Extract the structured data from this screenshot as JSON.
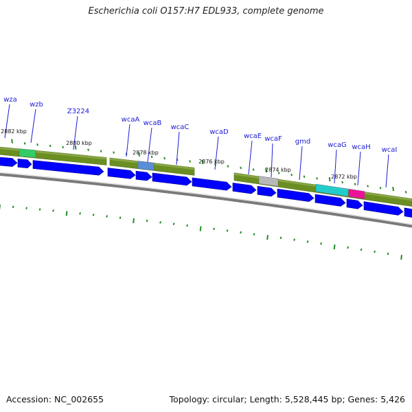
{
  "title": "Escherichia coli O157:H7 EDL933, complete genome",
  "footer": {
    "accession": "Accession: NC_002655",
    "stats": "Topology: circular; Length: 5,528,445 bp; Genes: 5,426"
  },
  "colors": {
    "gene_arrow": "#0000ff",
    "feature_band": "#6b8e23",
    "highlight_green": "#33cc66",
    "highlight_blue": "#5a8fd8",
    "highlight_gray": "#b8b8b8",
    "highlight_cyan": "#22cccc",
    "highlight_magenta": "#ee1199",
    "gene_label": "#1a1ad6",
    "tick": "#228b22",
    "backbone": "#7a7a7a"
  },
  "gene_labels": [
    "wza",
    "wzb",
    "Z3224",
    "wcaA",
    "wcaB",
    "wcaC",
    "wcaD",
    "wcaE",
    "wcaF",
    "gmd",
    "wcaG",
    "wcaH",
    "wcaI"
  ],
  "position_labels": [
    "2882 kbp",
    "2880 kbp",
    "2878 kbp",
    "2876 kbp",
    "2874 kbp",
    "2872 kbp"
  ]
}
